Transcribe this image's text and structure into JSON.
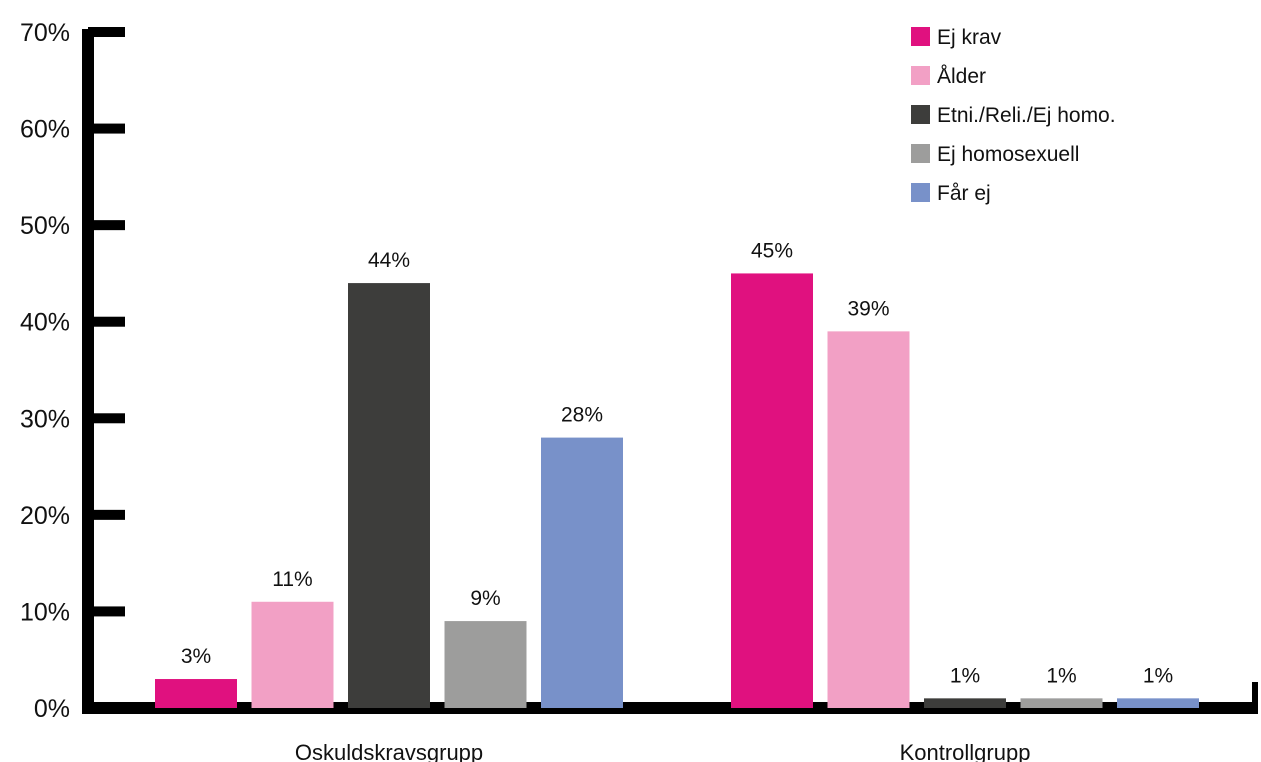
{
  "chart_data": {
    "type": "bar",
    "categories": [
      "Oskuldskravsgrupp",
      "Kontrollgrupp"
    ],
    "series": [
      {
        "name": "Ej krav",
        "color": "#e0117f",
        "values": [
          3,
          45
        ],
        "labels": [
          "3%",
          "45%"
        ]
      },
      {
        "name": "Ålder",
        "color": "#f2a0c5",
        "values": [
          11,
          39
        ],
        "labels": [
          "11%",
          "39%"
        ]
      },
      {
        "name": "Etni./Reli./Ej homo.",
        "color": "#3d3d3b",
        "values": [
          44,
          1
        ],
        "labels": [
          "44%",
          "1%"
        ]
      },
      {
        "name": "Ej homosexuell",
        "color": "#9d9d9c",
        "values": [
          9,
          1
        ],
        "labels": [
          "9%",
          "1%"
        ]
      },
      {
        "name": "Får ej",
        "color": "#7891c9",
        "values": [
          28,
          1
        ],
        "labels": [
          "28%",
          "1%"
        ]
      }
    ],
    "title": "",
    "xlabel": "",
    "ylabel": "",
    "ylim": [
      0,
      70
    ],
    "yticks": [
      {
        "value": 0,
        "label": "0%"
      },
      {
        "value": 10,
        "label": "10%"
      },
      {
        "value": 20,
        "label": "20%"
      },
      {
        "value": 30,
        "label": "30%"
      },
      {
        "value": 40,
        "label": "40%"
      },
      {
        "value": 50,
        "label": "50%"
      },
      {
        "value": 60,
        "label": "60%"
      },
      {
        "value": 70,
        "label": "70%"
      }
    ],
    "grid": false,
    "legend_position": "top-right",
    "axis_color": "#000000"
  }
}
